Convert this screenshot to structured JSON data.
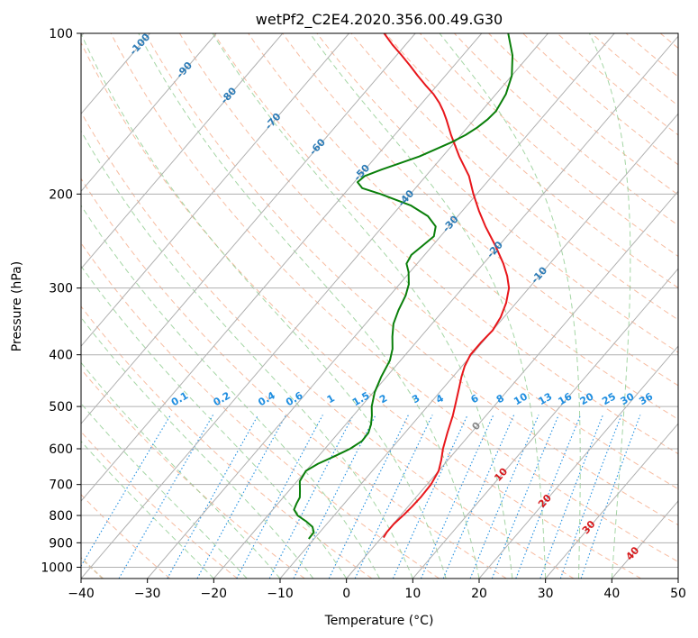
{
  "chart_data": {
    "type": "skew-t",
    "title": "wetPf2_C2E4.2020.356.00.49.G30",
    "xlabel": "Temperature (°C)",
    "ylabel": "Pressure (hPa)",
    "xlim": [
      -40,
      50
    ],
    "ylim": [
      1050,
      100
    ],
    "x_ticks": [
      -40,
      -30,
      -20,
      -10,
      0,
      10,
      20,
      30,
      40,
      50
    ],
    "y_ticks": [
      100,
      200,
      300,
      400,
      500,
      600,
      700,
      800,
      900,
      1000
    ],
    "grid": true,
    "series": [
      {
        "kind": "temperature",
        "color": "#e8161b",
        "points": [
          [
            880,
            0.3
          ],
          [
            860,
            0.1
          ],
          [
            830,
            0.1
          ],
          [
            800,
            0.4
          ],
          [
            770,
            0.6
          ],
          [
            740,
            0.7
          ],
          [
            700,
            0.6
          ],
          [
            660,
            0.0
          ],
          [
            630,
            -1.0
          ],
          [
            600,
            -2.2
          ],
          [
            560,
            -3.6
          ],
          [
            520,
            -5.0
          ],
          [
            490,
            -6.3
          ],
          [
            460,
            -7.7
          ],
          [
            440,
            -8.7
          ],
          [
            420,
            -9.6
          ],
          [
            400,
            -10.2
          ],
          [
            380,
            -10.2
          ],
          [
            360,
            -10.0
          ],
          [
            340,
            -10.5
          ],
          [
            320,
            -11.5
          ],
          [
            300,
            -13.0
          ],
          [
            285,
            -14.8
          ],
          [
            270,
            -17.0
          ],
          [
            250,
            -20.5
          ],
          [
            230,
            -24.5
          ],
          [
            215,
            -27.5
          ],
          [
            200,
            -30.5
          ],
          [
            185,
            -33.5
          ],
          [
            170,
            -37.5
          ],
          [
            155,
            -41.5
          ],
          [
            145,
            -44.2
          ],
          [
            140,
            -45.7
          ],
          [
            135,
            -47.4
          ],
          [
            130,
            -49.4
          ],
          [
            125,
            -51.8
          ],
          [
            120,
            -54.2
          ],
          [
            115,
            -56.6
          ],
          [
            110,
            -59.2
          ],
          [
            105,
            -62.0
          ],
          [
            100,
            -64.7
          ]
        ]
      },
      {
        "kind": "dewpoint",
        "color": "#0a7f0a",
        "points": [
          [
            885,
            -10.8
          ],
          [
            860,
            -10.9
          ],
          [
            840,
            -11.8
          ],
          [
            820,
            -13.5
          ],
          [
            800,
            -15.5
          ],
          [
            780,
            -16.8
          ],
          [
            760,
            -17.2
          ],
          [
            740,
            -17.5
          ],
          [
            720,
            -18.3
          ],
          [
            690,
            -19.6
          ],
          [
            660,
            -20.0
          ],
          [
            640,
            -19.1
          ],
          [
            620,
            -17.6
          ],
          [
            600,
            -16.2
          ],
          [
            580,
            -15.4
          ],
          [
            560,
            -15.5
          ],
          [
            540,
            -16.2
          ],
          [
            520,
            -17.2
          ],
          [
            500,
            -18.4
          ],
          [
            470,
            -19.8
          ],
          [
            440,
            -20.8
          ],
          [
            410,
            -21.6
          ],
          [
            390,
            -22.7
          ],
          [
            370,
            -24.3
          ],
          [
            350,
            -25.8
          ],
          [
            330,
            -26.8
          ],
          [
            310,
            -27.6
          ],
          [
            295,
            -28.6
          ],
          [
            280,
            -30.2
          ],
          [
            270,
            -31.6
          ],
          [
            260,
            -32.0
          ],
          [
            250,
            -31.5
          ],
          [
            240,
            -31.0
          ],
          [
            230,
            -32.0
          ],
          [
            220,
            -34.5
          ],
          [
            210,
            -38.5
          ],
          [
            200,
            -44.5
          ],
          [
            195,
            -48.0
          ],
          [
            190,
            -49.5
          ],
          [
            185,
            -49.2
          ],
          [
            180,
            -47.5
          ],
          [
            175,
            -45.5
          ],
          [
            170,
            -43.5
          ],
          [
            165,
            -42.0
          ],
          [
            160,
            -40.5
          ],
          [
            155,
            -39.3
          ],
          [
            150,
            -38.5
          ],
          [
            145,
            -38.0
          ],
          [
            140,
            -37.8
          ],
          [
            130,
            -38.5
          ],
          [
            120,
            -40.0
          ],
          [
            110,
            -42.5
          ],
          [
            100,
            -46.0
          ]
        ]
      }
    ],
    "isotherm_labels": [
      "-100",
      "-90",
      "-80",
      "-70",
      "-60",
      "-50",
      "-40",
      "-30",
      "-20",
      "-10",
      "0",
      "10",
      "20",
      "30",
      "40"
    ],
    "mixing_ratio_labels": [
      "0.1",
      "0.2",
      "0.4",
      "0.6",
      "1",
      "1.5",
      "2",
      "3",
      "4",
      "6",
      "8",
      "10",
      "13",
      "16",
      "20",
      "25",
      "30",
      "36"
    ],
    "mixing_ratio_values": [
      0.1,
      0.2,
      0.4,
      0.6,
      1,
      1.5,
      2,
      3,
      4,
      6,
      8,
      10,
      13,
      16,
      20,
      25,
      30,
      36
    ],
    "colors": {
      "isotherm_label_cold": "#2c7bb6",
      "isotherm_label_warm": "#d7191c",
      "isotherm_label_zero": "#888888",
      "mixing_ratio": "#1f8ee0",
      "dry_adiabat": "#f4a582",
      "moist_adiabat": "#8fcc8f",
      "dry_adiabat_tan": "#d2b48c",
      "grid": "#b0b0b0"
    }
  }
}
